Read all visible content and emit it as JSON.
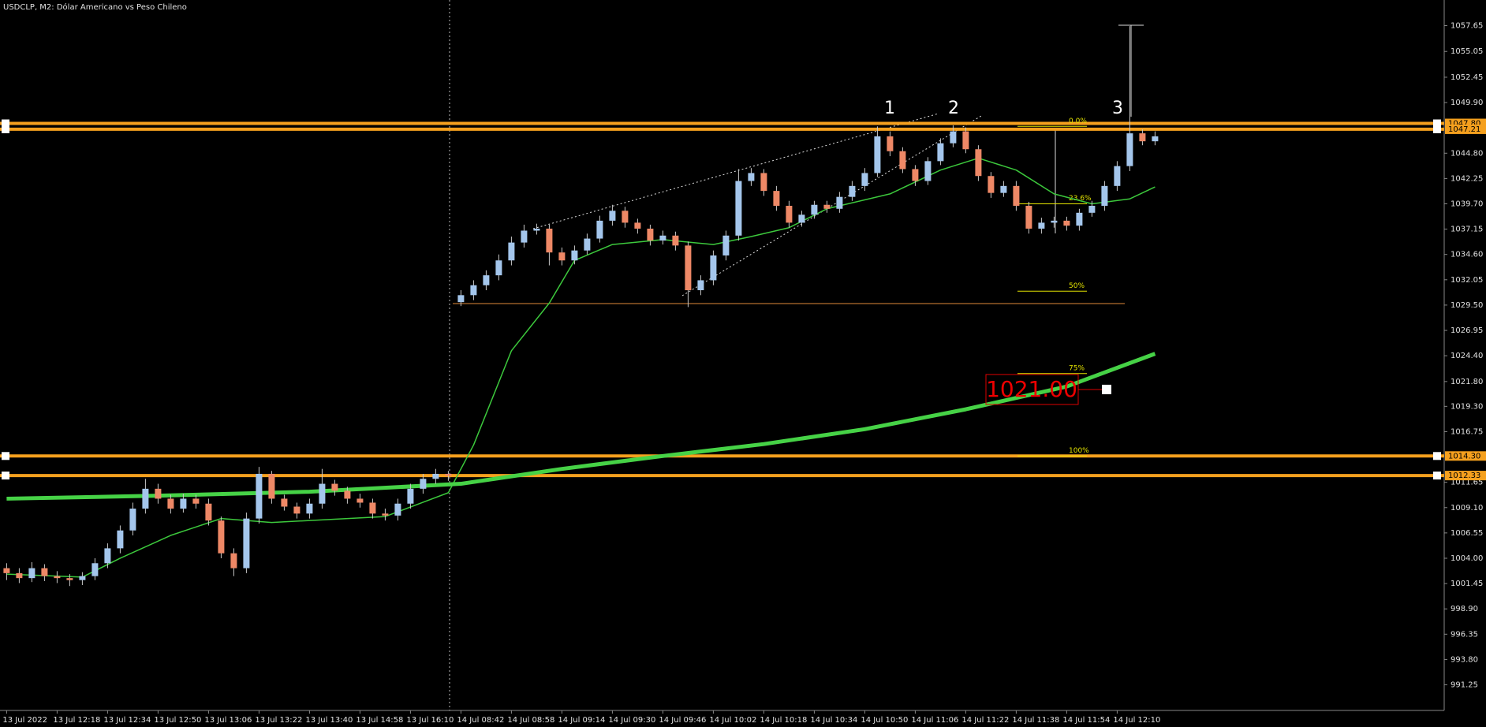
{
  "chart_data": {
    "type": "candlestick",
    "title": "USDCLP, M2:  Dólar Americano vs Peso Chileno",
    "categories": [
      "13 Jul 2022",
      null,
      null,
      null,
      "13 Jul 12:18",
      null,
      null,
      null,
      "13 Jul 12:34",
      null,
      null,
      null,
      "13 Jul 12:50",
      null,
      null,
      null,
      "13 Jul 13:06",
      null,
      null,
      null,
      "13 Jul 13:22",
      null,
      null,
      null,
      "13 Jul 13:40",
      null,
      null,
      null,
      "13 Jul 14:58",
      null,
      null,
      null,
      "13 Jul 16:10",
      null,
      null,
      null,
      "14 Jul 08:42",
      null,
      null,
      null,
      "14 Jul 08:58",
      null,
      null,
      null,
      "14 Jul 09:14",
      null,
      null,
      null,
      "14 Jul 09:30",
      null,
      null,
      null,
      "14 Jul 09:46",
      null,
      null,
      null,
      "14 Jul 10:02",
      null,
      null,
      null,
      "14 Jul 10:18",
      null,
      null,
      null,
      "14 Jul 10:34",
      null,
      null,
      null,
      "14 Jul 10:50",
      null,
      null,
      null,
      "14 Jul 11:06",
      null,
      null,
      null,
      "14 Jul 11:22",
      null,
      null,
      null,
      "14 Jul 11:38",
      null,
      null,
      null,
      "14 Jul 11:54",
      null,
      null,
      null,
      "14 Jul 12:10",
      null,
      null,
      null
    ],
    "open": [
      1003,
      1002.5,
      1002,
      1003,
      1002.2,
      1002,
      1001.8,
      1002.2,
      1003.5,
      1005,
      1006.8,
      1009,
      1011,
      1010,
      1009,
      1010,
      1009.5,
      1007.8,
      1004.5,
      1003,
      1008,
      1012.5,
      1010,
      1009.2,
      1008.5,
      1009.5,
      1011.5,
      1010.8,
      1010,
      1009.6,
      1008.5,
      1008.3,
      1009.5,
      1011,
      1012,
      1012.5,
      1029.8,
      1030.5,
      1031.5,
      1032.5,
      1034,
      1035.8,
      1037,
      1037.2,
      1034.8,
      1034,
      1035,
      1036.2,
      1038,
      1039,
      1037.8,
      1037.2,
      1036,
      1036.5,
      1035.5,
      1031,
      1032,
      1034.5,
      1036.5,
      1042,
      1042.8,
      1041,
      1039.5,
      1037.8,
      1038.6,
      1039.6,
      1039.2,
      1040.4,
      1041.5,
      1042.8,
      1046.5,
      1045,
      1043.2,
      1042,
      1044,
      1045.8,
      1047,
      1045.2,
      1042.5,
      1040.8,
      1041.5,
      1039.5,
      1037.2,
      1037.8,
      1038,
      1037.5,
      1038.8,
      1039.5,
      1041.5,
      1043.5,
      1046.8,
      1046
    ],
    "high": [
      1003.5,
      1003,
      1003.6,
      1003.4,
      1002.7,
      1002.4,
      1002.6,
      1004,
      1005.5,
      1007.3,
      1009.6,
      1012,
      1011.5,
      1010.4,
      1010.5,
      1010.4,
      1010,
      1008.2,
      1005,
      1008.6,
      1013.2,
      1012.8,
      1010.4,
      1009.6,
      1010,
      1013,
      1011.9,
      1011.2,
      1010.5,
      1010,
      1009,
      1010,
      1011.5,
      1012.5,
      1013,
      1012.8,
      1031,
      1032,
      1033,
      1034.6,
      1036.4,
      1037.6,
      1037.7,
      1037.6,
      1035.3,
      1035.5,
      1036.7,
      1038.5,
      1039.6,
      1039.4,
      1038.2,
      1037.6,
      1037,
      1036.9,
      1035.9,
      1032.5,
      1035,
      1037,
      1043.2,
      1043.3,
      1043.2,
      1041.5,
      1040,
      1039,
      1040,
      1040,
      1040.9,
      1042,
      1043.3,
      1047.5,
      1047,
      1045.4,
      1043.6,
      1044.4,
      1046.3,
      1047.6,
      1047.4,
      1045.6,
      1042.9,
      1042,
      1042,
      1039.9,
      1038.3,
      1038.4,
      1038.4,
      1039.2,
      1040,
      1042,
      1044,
      1057.6,
      1047.2,
      1047
    ],
    "low": [
      1001.8,
      1001.5,
      1001.6,
      1001.7,
      1001.5,
      1001.2,
      1001.3,
      1001.8,
      1003,
      1004.5,
      1006.3,
      1008.5,
      1009.5,
      1008.5,
      1008.6,
      1009,
      1007.3,
      1004,
      1002.2,
      1002.5,
      1007.5,
      1009.5,
      1008.8,
      1008,
      1008,
      1009,
      1010.3,
      1009.5,
      1009.1,
      1008,
      1007.8,
      1007.8,
      1009,
      1010.5,
      1011.5,
      1011.8,
      1029.4,
      1030,
      1031,
      1032,
      1033.5,
      1035.3,
      1036.6,
      1033.5,
      1033.5,
      1033.6,
      1034.6,
      1035.8,
      1037.5,
      1037.3,
      1036.7,
      1035.5,
      1035.6,
      1035,
      1029.3,
      1030.5,
      1031.5,
      1034,
      1036,
      1041.5,
      1040.5,
      1039,
      1037.3,
      1037.4,
      1038.2,
      1038.8,
      1038.8,
      1040,
      1041,
      1042.4,
      1044.5,
      1042.8,
      1041.5,
      1041.6,
      1043.6,
      1045.4,
      1044.8,
      1042,
      1040.3,
      1040.4,
      1039,
      1036.7,
      1036.7,
      1037.3,
      1037,
      1037,
      1038.4,
      1039,
      1041,
      1043,
      1045.6,
      1045.6
    ],
    "close": [
      1002.5,
      1002,
      1003,
      1002.2,
      1002,
      1001.8,
      1002.2,
      1003.5,
      1005,
      1006.8,
      1009,
      1011,
      1010,
      1009,
      1010,
      1009.5,
      1007.8,
      1004.5,
      1003,
      1008,
      1012.5,
      1010,
      1009.2,
      1008.5,
      1009.5,
      1011.5,
      1010.8,
      1010,
      1009.6,
      1008.5,
      1008.3,
      1009.5,
      1011,
      1012,
      1012.5,
      1012.3,
      1030.5,
      1031.5,
      1032.5,
      1034,
      1035.8,
      1037,
      1037.2,
      1034.8,
      1034,
      1035,
      1036.2,
      1038,
      1039,
      1037.8,
      1037.2,
      1036,
      1036.5,
      1035.5,
      1031,
      1032,
      1034.5,
      1036.5,
      1042,
      1042.8,
      1041,
      1039.5,
      1037.8,
      1038.6,
      1039.6,
      1039.2,
      1040.4,
      1041.5,
      1042.8,
      1046.5,
      1045,
      1043.2,
      1042,
      1044,
      1045.8,
      1047,
      1045.2,
      1042.5,
      1040.8,
      1041.5,
      1039.5,
      1037.2,
      1037.8,
      1038,
      1037.5,
      1038.8,
      1039.5,
      1041.5,
      1043.5,
      1046.8,
      1046,
      1046.5
    ],
    "up_color": "#a4c6ec",
    "down_color": "#ee8866",
    "wick_color": "#c8c8c8",
    "lines": [
      {
        "color": "#3cc83c",
        "x": [
          0,
          6,
          9,
          13,
          17,
          21,
          30,
          35,
          37,
          40,
          43,
          45,
          48,
          52,
          56,
          59,
          62,
          65,
          70,
          74,
          77,
          80,
          83,
          86,
          89,
          91
        ],
        "values": [
          1002.4,
          1002.1,
          1004.0,
          1006.3,
          1008.0,
          1007.6,
          1008.2,
          1010.6,
          1015.4,
          1024.9,
          1029.7,
          1034.0,
          1035.6,
          1036.1,
          1035.6,
          1036.4,
          1037.3,
          1039.2,
          1040.7,
          1043.1,
          1044.3,
          1043.1,
          1040.7,
          1039.7,
          1040.2,
          1041.4
        ]
      },
      {
        "color": "#46d246",
        "x": [
          0,
          12,
          24,
          36,
          44,
          52,
          60,
          68,
          76,
          84,
          91
        ],
        "values": [
          1010.0,
          1010.3,
          1010.7,
          1011.5,
          1013.0,
          1014.3,
          1015.5,
          1017.0,
          1019.0,
          1021.3,
          1024.6
        ]
      }
    ],
    "levels": [
      {
        "value": 1047.8,
        "label": "1047.80"
      },
      {
        "value": 1047.21,
        "label": "1047.21"
      },
      {
        "value": 1014.3,
        "label": "1014.30"
      },
      {
        "value": 1012.33,
        "label": "1012.33"
      }
    ],
    "level_color": "#f5a01e",
    "fib_levels": [
      {
        "value": 1047.5,
        "label": "0.0%"
      },
      {
        "value": 1039.7,
        "label": "23.6%"
      },
      {
        "value": 1030.9,
        "label": "50%"
      },
      {
        "value": 1022.6,
        "label": "75%"
      },
      {
        "value": 1014.3,
        "label": "100%"
      }
    ],
    "fib_color": "#e6e600",
    "price_label": {
      "value": 1021.0,
      "label": "1021.00"
    },
    "annotations": [
      "1",
      "2",
      "3"
    ],
    "ylim": [
      988.67,
      1060.23
    ],
    "yticks": [
      1057.65,
      1055.05,
      1052.45,
      {
        "value": 1049.9,
        "label": "1049.90"
      },
      {
        "value": 1044.8,
        "label": "1044.80"
      },
      1042.25,
      {
        "value": 1039.7,
        "label": "1039.70"
      },
      1037.15,
      {
        "value": 1034.6,
        "label": "1034.60"
      },
      1032.05,
      {
        "value": 1029.5,
        "label": "1029.50"
      },
      1026.95,
      {
        "value": 1024.4,
        "label": "1024.40"
      },
      {
        "value": 1021.8,
        "label": "1021.80"
      },
      {
        "value": 1019.3,
        "label": "1019.30"
      },
      1016.75,
      1011.65,
      {
        "value": 1009.1,
        "label": "1009.10"
      },
      1006.55,
      {
        "value": 1004,
        "label": "1004.00"
      },
      1001.45,
      {
        "value": 998.9,
        "label": "998.90"
      },
      996.35,
      {
        "value": 993.8,
        "label": "993.80"
      },
      991.25
    ]
  }
}
